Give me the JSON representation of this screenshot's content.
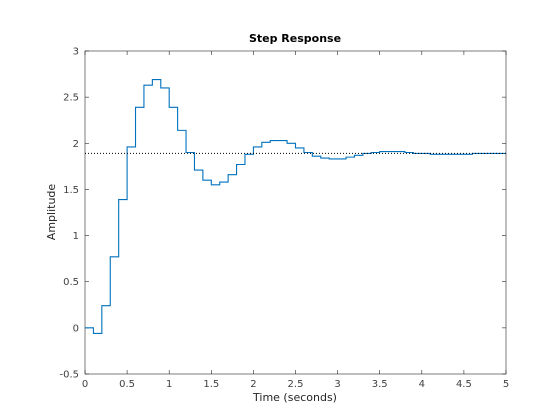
{
  "chart_data": {
    "type": "line",
    "title": "Step Response",
    "xlabel": "Time (seconds)",
    "ylabel": "Amplitude",
    "xlim": [
      0,
      5
    ],
    "ylim": [
      -0.5,
      3
    ],
    "xticks": [
      0,
      0.5,
      1,
      1.5,
      2,
      2.5,
      3,
      3.5,
      4,
      4.5,
      5
    ],
    "xtick_labels": [
      "0",
      "0.5",
      "1",
      "1.5",
      "2",
      "2.5",
      "3",
      "3.5",
      "4",
      "4.5",
      "5"
    ],
    "yticks": [
      -0.5,
      0,
      0.5,
      1,
      1.5,
      2,
      2.5,
      3
    ],
    "ytick_labels": [
      "-0.5",
      "0",
      "0.5",
      "1",
      "1.5",
      "2",
      "2.5",
      "3"
    ],
    "grid": false,
    "series": [
      {
        "style": "step",
        "color": "#0072bd",
        "x": [
          0,
          0.1,
          0.2,
          0.3,
          0.4,
          0.5,
          0.6,
          0.7,
          0.8,
          0.9,
          1.0,
          1.1,
          1.2,
          1.3,
          1.4,
          1.5,
          1.6,
          1.7,
          1.8,
          1.9,
          2.0,
          2.1,
          2.2,
          2.3,
          2.4,
          2.5,
          2.6,
          2.7,
          2.8,
          2.9,
          3.0,
          3.1,
          3.2,
          3.3,
          3.4,
          3.5,
          3.6,
          3.7,
          3.8,
          3.9,
          4.0,
          4.1,
          4.2,
          4.3,
          4.4,
          4.5,
          4.6,
          4.7,
          4.8,
          4.9
        ],
        "y": [
          0,
          -0.06,
          0.24,
          0.77,
          1.39,
          1.96,
          2.39,
          2.63,
          2.69,
          2.6,
          2.39,
          2.14,
          1.9,
          1.71,
          1.6,
          1.55,
          1.58,
          1.66,
          1.77,
          1.88,
          1.96,
          2.01,
          2.03,
          2.03,
          2.0,
          1.95,
          1.9,
          1.86,
          1.84,
          1.83,
          1.83,
          1.85,
          1.87,
          1.89,
          1.9,
          1.91,
          1.91,
          1.91,
          1.9,
          1.89,
          1.89,
          1.88,
          1.88,
          1.88,
          1.88,
          1.88,
          1.89,
          1.89,
          1.89,
          1.89
        ]
      },
      {
        "style": "dotted",
        "color": "#000000",
        "x": [
          0,
          5
        ],
        "y": [
          1.89,
          1.89
        ]
      }
    ]
  }
}
